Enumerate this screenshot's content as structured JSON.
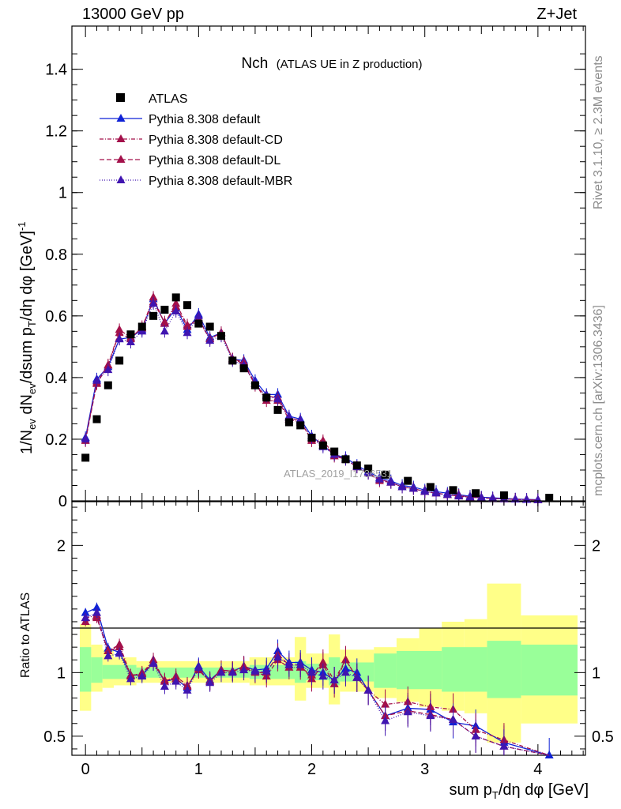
{
  "header": {
    "left": "13000 GeV pp",
    "right": "Z+Jet",
    "title_main": "Nch",
    "title_sub": "(ATLAS UE in Z production)"
  },
  "side": {
    "right_top": "Rivet 3.1.10, ≥ 2.3M events",
    "right_bottom": "mcplots.cern.ch [arXiv:1306.3436]"
  },
  "watermark": "ATLAS_2019_I1736531",
  "chart_data": [
    {
      "type": "scatter",
      "panel": "main",
      "xlabel": "sum pT/dη dφ [GeV]",
      "ylabel": "1/Nev dNev/dsum pT/dη dφ [GeV]-1",
      "xlim": [
        -0.12,
        4.42
      ],
      "ylim": [
        0,
        1.54
      ],
      "yticks": [
        "0",
        "0.2",
        "0.4",
        "0.6",
        "0.8",
        "1",
        "1.2",
        "1.4"
      ],
      "legend_position": "top-left",
      "x": [
        0.0,
        0.1,
        0.2,
        0.3,
        0.4,
        0.5,
        0.6,
        0.7,
        0.8,
        0.9,
        1.0,
        1.1,
        1.2,
        1.3,
        1.4,
        1.5,
        1.6,
        1.7,
        1.8,
        1.9,
        2.0,
        2.1,
        2.2,
        2.3,
        2.4,
        2.5,
        2.6,
        2.7,
        2.8,
        2.9,
        3.0,
        3.1,
        3.2,
        3.3,
        3.4,
        3.5,
        3.6,
        3.7,
        3.8,
        3.9,
        4.0
      ],
      "series": [
        {
          "name": "ATLAS",
          "color": "#000000",
          "marker": "square",
          "x": [
            0.0,
            0.1,
            0.2,
            0.3,
            0.4,
            0.5,
            0.6,
            0.7,
            0.8,
            0.9,
            1.0,
            1.1,
            1.2,
            1.3,
            1.4,
            1.5,
            1.6,
            1.7,
            1.8,
            1.9,
            2.0,
            2.1,
            2.2,
            2.3,
            2.4,
            2.5,
            2.65,
            2.85,
            3.05,
            3.25,
            3.45,
            3.7,
            4.1
          ],
          "values": [
            0.14,
            0.265,
            0.375,
            0.455,
            0.54,
            0.565,
            0.6,
            0.62,
            0.66,
            0.635,
            0.575,
            0.565,
            0.535,
            0.455,
            0.43,
            0.375,
            0.335,
            0.295,
            0.255,
            0.245,
            0.205,
            0.18,
            0.16,
            0.135,
            0.115,
            0.105,
            0.085,
            0.065,
            0.045,
            0.035,
            0.025,
            0.018,
            0.01
          ]
        },
        {
          "name": "Pythia 8.308 default",
          "color": "#0f22d6",
          "marker": "triangle",
          "dash": "",
          "values": [
            0.205,
            0.395,
            0.435,
            0.525,
            0.53,
            0.555,
            0.655,
            0.575,
            0.625,
            0.555,
            0.605,
            0.53,
            0.545,
            0.46,
            0.455,
            0.39,
            0.345,
            0.345,
            0.275,
            0.265,
            0.21,
            0.18,
            0.15,
            0.14,
            0.115,
            0.095,
            0.075,
            0.065,
            0.05,
            0.045,
            0.035,
            0.03,
            0.025,
            0.02,
            0.015,
            0.012,
            0.01,
            0.008,
            0.006,
            0.005,
            0.004
          ]
        },
        {
          "name": "Pythia 8.308 default-CD",
          "color": "#a3104a",
          "marker": "triangle",
          "dash": "5,2,1,2",
          "values": [
            0.2,
            0.385,
            0.44,
            0.555,
            0.53,
            0.56,
            0.66,
            0.575,
            0.64,
            0.57,
            0.585,
            0.525,
            0.545,
            0.46,
            0.45,
            0.38,
            0.325,
            0.325,
            0.265,
            0.255,
            0.2,
            0.195,
            0.15,
            0.135,
            0.11,
            0.09,
            0.065,
            0.06,
            0.045,
            0.04,
            0.03,
            0.025,
            0.02,
            0.018,
            0.012,
            0.01,
            0.008,
            0.006,
            0.005,
            0.004,
            0.003
          ]
        },
        {
          "name": "Pythia 8.308 default-DL",
          "color": "#a3104a",
          "marker": "triangle",
          "dash": "6,3",
          "values": [
            0.195,
            0.38,
            0.44,
            0.545,
            0.525,
            0.565,
            0.645,
            0.58,
            0.63,
            0.565,
            0.59,
            0.525,
            0.545,
            0.46,
            0.445,
            0.375,
            0.34,
            0.335,
            0.27,
            0.26,
            0.195,
            0.19,
            0.145,
            0.135,
            0.11,
            0.09,
            0.07,
            0.06,
            0.045,
            0.04,
            0.03,
            0.025,
            0.02,
            0.015,
            0.012,
            0.01,
            0.008,
            0.006,
            0.005,
            0.004,
            0.003
          ]
        },
        {
          "name": "Pythia 8.308 default-MBR",
          "color": "#4015b0",
          "marker": "triangle",
          "dash": "1,2",
          "values": [
            0.2,
            0.39,
            0.425,
            0.525,
            0.515,
            0.55,
            0.64,
            0.55,
            0.615,
            0.545,
            0.6,
            0.52,
            0.535,
            0.455,
            0.44,
            0.38,
            0.34,
            0.33,
            0.27,
            0.26,
            0.205,
            0.175,
            0.15,
            0.135,
            0.11,
            0.09,
            0.07,
            0.06,
            0.045,
            0.04,
            0.03,
            0.025,
            0.02,
            0.015,
            0.012,
            0.01,
            0.008,
            0.006,
            0.005,
            0.004,
            0.003
          ]
        }
      ]
    },
    {
      "type": "line",
      "panel": "ratio",
      "xlabel": "sum pT/dη dφ [GeV]",
      "ylabel": "Ratio to ATLAS",
      "xlim": [
        -0.12,
        4.42
      ],
      "ylim": [
        0.35,
        2.35
      ],
      "yticks": [
        "0.5",
        "1",
        "2"
      ],
      "xticks": [
        "0",
        "1",
        "2",
        "3",
        "4"
      ],
      "ratio_x": [
        0.0,
        0.1,
        0.2,
        0.3,
        0.4,
        0.5,
        0.6,
        0.7,
        0.8,
        0.9,
        1.0,
        1.1,
        1.2,
        1.3,
        1.4,
        1.5,
        1.6,
        1.7,
        1.8,
        1.9,
        2.0,
        2.1,
        2.2,
        2.3,
        2.4,
        2.5,
        2.65,
        2.85,
        3.05,
        3.25,
        3.45,
        3.7,
        4.1
      ],
      "bands": {
        "yellow": [
          [
            -0.05,
            0.05,
            0.7,
            1.38
          ],
          [
            0.05,
            0.15,
            0.85,
            1.22
          ],
          [
            0.15,
            0.25,
            0.88,
            1.18
          ],
          [
            0.25,
            0.45,
            0.9,
            1.12
          ],
          [
            0.45,
            1.45,
            0.92,
            1.09
          ],
          [
            1.45,
            1.85,
            0.9,
            1.12
          ],
          [
            1.85,
            1.95,
            0.78,
            1.28
          ],
          [
            1.95,
            2.15,
            0.88,
            1.15
          ],
          [
            2.15,
            2.25,
            0.75,
            1.3
          ],
          [
            2.25,
            2.55,
            0.85,
            1.18
          ],
          [
            2.55,
            2.75,
            0.8,
            1.2
          ],
          [
            2.75,
            2.95,
            0.77,
            1.27
          ],
          [
            2.95,
            3.15,
            0.73,
            1.35
          ],
          [
            3.15,
            3.35,
            0.7,
            1.4
          ],
          [
            3.35,
            3.55,
            0.68,
            1.42
          ],
          [
            3.55,
            3.85,
            0.45,
            1.7
          ],
          [
            3.85,
            4.35,
            0.6,
            1.45
          ]
        ],
        "green": [
          [
            -0.05,
            0.05,
            0.85,
            1.2
          ],
          [
            0.05,
            0.15,
            0.92,
            1.12
          ],
          [
            0.15,
            0.45,
            0.95,
            1.06
          ],
          [
            0.45,
            1.45,
            0.96,
            1.04
          ],
          [
            1.45,
            1.85,
            0.95,
            1.06
          ],
          [
            1.85,
            1.95,
            0.92,
            1.09
          ],
          [
            1.95,
            2.15,
            0.94,
            1.07
          ],
          [
            2.15,
            2.25,
            0.9,
            1.12
          ],
          [
            2.25,
            2.55,
            0.93,
            1.08
          ],
          [
            2.55,
            2.75,
            0.88,
            1.15
          ],
          [
            2.75,
            3.15,
            0.87,
            1.17
          ],
          [
            3.15,
            3.55,
            0.85,
            1.2
          ],
          [
            3.55,
            3.85,
            0.8,
            1.25
          ],
          [
            3.85,
            4.35,
            0.82,
            1.22
          ]
        ]
      },
      "series": [
        {
          "name": "Pythia 8.308 default",
          "color": "#0f22d6",
          "dash": "",
          "values": [
            1.47,
            1.51,
            1.19,
            1.16,
            0.98,
            0.98,
            1.08,
            0.93,
            0.95,
            0.88,
            1.05,
            0.94,
            1.02,
            1.01,
            1.05,
            1.02,
            1.03,
            1.17,
            1.08,
            1.08,
            1.02,
            1.0,
            0.94,
            1.03,
            1.0,
            0.86,
            0.66,
            0.72,
            0.71,
            0.61,
            0.58,
            0.45,
            0.35
          ]
        },
        {
          "name": "Pythia 8.308 default-CD",
          "color": "#a3104a",
          "dash": "5,2,1,2",
          "values": [
            1.43,
            1.45,
            1.17,
            1.22,
            0.98,
            0.99,
            1.1,
            0.93,
            0.97,
            0.9,
            1.02,
            0.93,
            1.02,
            1.01,
            1.05,
            1.01,
            0.97,
            1.1,
            1.04,
            1.04,
            0.98,
            1.08,
            0.94,
            1.1,
            0.96,
            0.86,
            0.75,
            0.77,
            0.73,
            0.71,
            0.55,
            0.47,
            0.3
          ]
        },
        {
          "name": "Pythia 8.308 default-DL",
          "color": "#a3104a",
          "dash": "6,3",
          "values": [
            1.4,
            1.43,
            1.17,
            1.2,
            0.97,
            1.0,
            1.07,
            0.94,
            0.95,
            0.89,
            1.03,
            0.93,
            1.02,
            1.01,
            1.04,
            1.0,
            1.0,
            1.14,
            1.06,
            1.06,
            0.95,
            1.06,
            0.91,
            1.1,
            0.96,
            0.86,
            0.66,
            0.7,
            0.67,
            0.63,
            0.5,
            0.42,
            0.28
          ]
        },
        {
          "name": "Pythia 8.308 default-MBR",
          "color": "#4015b0",
          "dash": "1,2",
          "values": [
            1.43,
            1.47,
            1.13,
            1.15,
            0.95,
            0.97,
            1.07,
            0.89,
            0.93,
            0.86,
            1.04,
            0.92,
            1.0,
            1.0,
            1.02,
            1.01,
            1.01,
            1.12,
            1.06,
            1.06,
            1.0,
            0.97,
            0.94,
            1.0,
            0.96,
            0.86,
            0.62,
            0.69,
            0.66,
            0.63,
            0.5,
            0.42,
            0.3
          ]
        }
      ]
    }
  ]
}
